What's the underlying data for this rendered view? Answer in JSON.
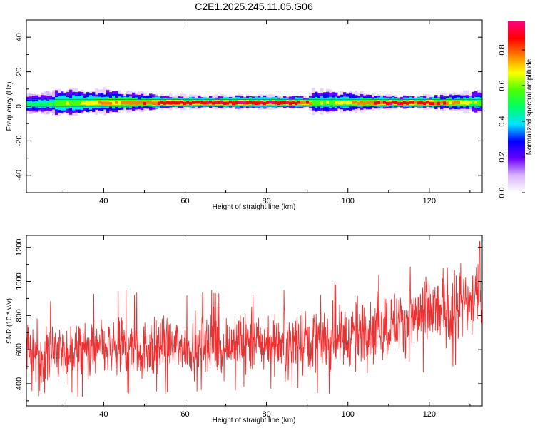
{
  "chart_data": [
    {
      "type": "heatmap",
      "title": "C2E1.2025.245.11.05.G06",
      "xlabel": "Height of straight line (km)",
      "ylabel": "Frequency (Hz)",
      "xlim": [
        21,
        133
      ],
      "ylim": [
        -50,
        50
      ],
      "x_ticks": [
        40,
        60,
        80,
        100,
        120
      ],
      "y_ticks": [
        -40,
        -20,
        0,
        20,
        40
      ],
      "ridge": {
        "description": "Dominant spectral peak near 1-2 Hz across all heights",
        "points": [
          {
            "x": 22,
            "y": 1.0,
            "width": 6,
            "amp": 0.5
          },
          {
            "x": 30,
            "y": 1.5,
            "width": 8,
            "amp": 0.6
          },
          {
            "x": 40,
            "y": 2.0,
            "width": 7,
            "amp": 0.75
          },
          {
            "x": 50,
            "y": 2.0,
            "width": 5,
            "amp": 0.85
          },
          {
            "x": 60,
            "y": 2.0,
            "width": 4,
            "amp": 0.9
          },
          {
            "x": 70,
            "y": 2.0,
            "width": 4,
            "amp": 0.92
          },
          {
            "x": 80,
            "y": 2.0,
            "width": 4,
            "amp": 0.93
          },
          {
            "x": 90,
            "y": 2.0,
            "width": 4,
            "amp": 0.9
          },
          {
            "x": 91,
            "y": 2.0,
            "width": 7,
            "amp": 0.6
          },
          {
            "x": 97,
            "y": 2.0,
            "width": 6,
            "amp": 0.7
          },
          {
            "x": 100,
            "y": 2.0,
            "width": 6,
            "amp": 0.7
          },
          {
            "x": 110,
            "y": 2.0,
            "width": 4,
            "amp": 0.92
          },
          {
            "x": 120,
            "y": 2.0,
            "width": 4,
            "amp": 0.88
          },
          {
            "x": 133,
            "y": 2.0,
            "width": 7,
            "amp": 0.6
          }
        ]
      },
      "colorbar": {
        "label": "Normalized spectral amplitude",
        "range": [
          0,
          0.96
        ],
        "ticks": [
          0.0,
          0.2,
          0.4,
          0.6,
          0.8
        ],
        "tick_labels": [
          "0.0",
          "0.2",
          "0.4",
          "0.6",
          "0.8"
        ],
        "colors": [
          "#ffffff",
          "#d9b3ff",
          "#6a00ff",
          "#0000ff",
          "#00e5ff",
          "#00ff66",
          "#4cff00",
          "#ffff00",
          "#ff8000",
          "#ff0000",
          "#ff0080"
        ]
      }
    },
    {
      "type": "line",
      "title": "",
      "xlabel": "Height of straight line (km)",
      "ylabel": "SNR (10 * v/v)",
      "xlim": [
        21,
        133
      ],
      "ylim": [
        270,
        1270
      ],
      "x_ticks": [
        40,
        60,
        80,
        100,
        120
      ],
      "y_ticks": [
        400,
        600,
        800,
        1000,
        1200
      ],
      "series": [
        {
          "name": "SNR",
          "color": "#f03030",
          "trend": {
            "x": [
              21,
              80,
              100,
              133
            ],
            "y": [
              580,
              640,
              680,
              900
            ]
          },
          "noise_amplitude": [
            {
              "x": 21,
              "amp": 140
            },
            {
              "x": 80,
              "amp": 150
            },
            {
              "x": 133,
              "amp": 190
            }
          ],
          "envelope_max": [
            {
              "x": 21,
              "y": 860
            },
            {
              "x": 40,
              "y": 950
            },
            {
              "x": 80,
              "y": 960
            },
            {
              "x": 100,
              "y": 1020
            },
            {
              "x": 120,
              "y": 1150
            },
            {
              "x": 133,
              "y": 1240
            }
          ],
          "envelope_min": [
            {
              "x": 21,
              "y": 330
            },
            {
              "x": 40,
              "y": 320
            },
            {
              "x": 80,
              "y": 350
            },
            {
              "x": 100,
              "y": 330
            },
            {
              "x": 120,
              "y": 440
            },
            {
              "x": 133,
              "y": 550
            }
          ]
        }
      ]
    }
  ]
}
